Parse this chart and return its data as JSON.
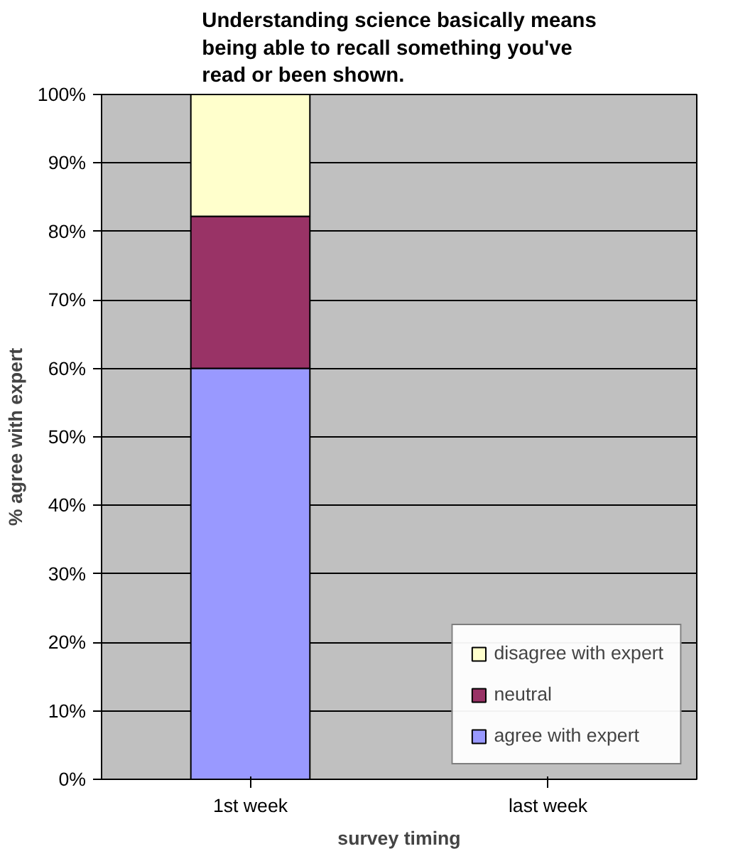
{
  "chart_data": {
    "type": "bar",
    "stacked": true,
    "title": "Understanding science basically means being able to recall something you've read or been shown.",
    "xlabel": "survey timing",
    "ylabel": "% agree with expert",
    "categories": [
      "1st week",
      "last week"
    ],
    "series": [
      {
        "name": "agree with expert",
        "color": "#9999ff",
        "values": [
          60.0,
          null
        ]
      },
      {
        "name": "neutral",
        "color": "#993366",
        "values": [
          22.2,
          null
        ]
      },
      {
        "name": "disagree with expert",
        "color": "#ffffcc",
        "values": [
          17.8,
          null
        ]
      }
    ],
    "ylim": [
      0,
      100
    ],
    "yticks": [
      {
        "value": 0,
        "label": "0%"
      },
      {
        "value": 10,
        "label": "10%"
      },
      {
        "value": 20,
        "label": "20%"
      },
      {
        "value": 30,
        "label": "30%"
      },
      {
        "value": 40,
        "label": "40%"
      },
      {
        "value": 50,
        "label": "50%"
      },
      {
        "value": 60,
        "label": "60%"
      },
      {
        "value": 70,
        "label": "70%"
      },
      {
        "value": 80,
        "label": "80%"
      },
      {
        "value": 90,
        "label": "90%"
      },
      {
        "value": 100,
        "label": "100%"
      }
    ],
    "grid": "y",
    "legend": "bottom right"
  }
}
